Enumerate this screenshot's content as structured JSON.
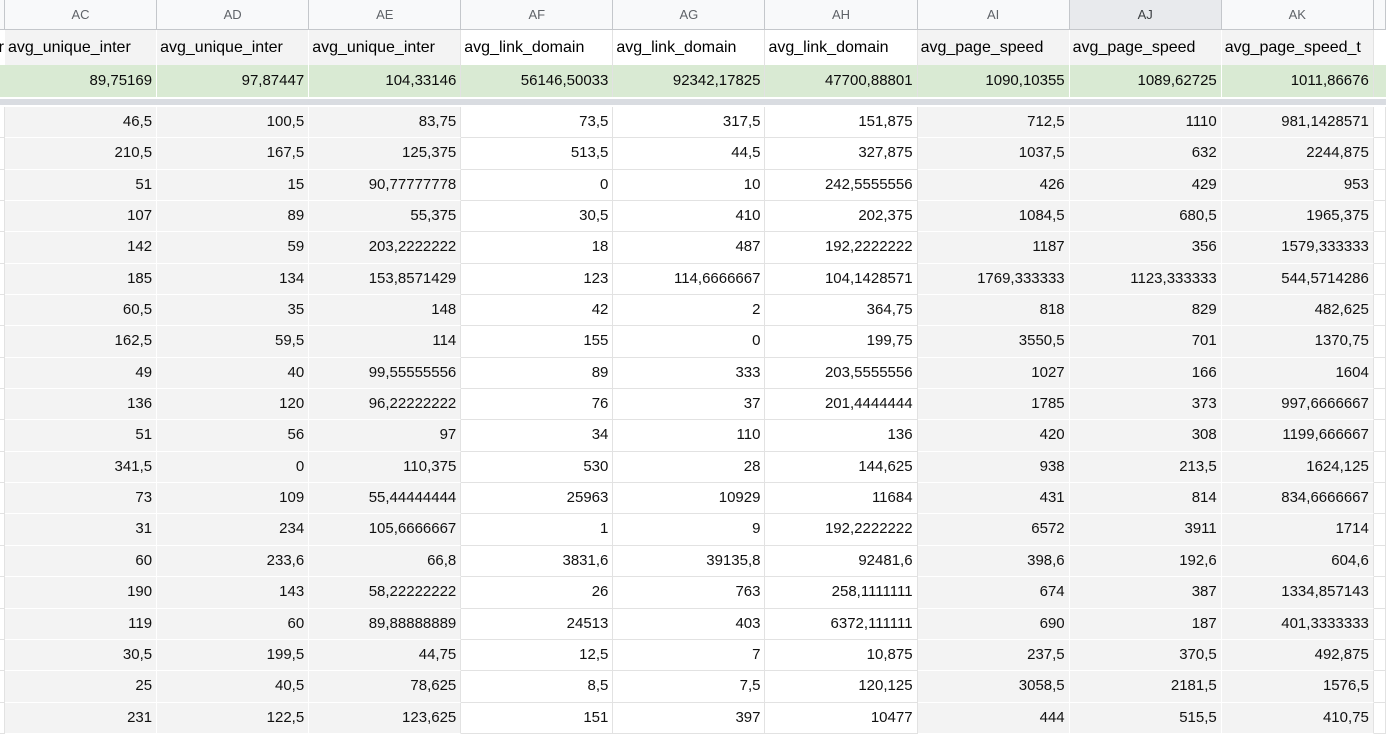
{
  "sheet": {
    "colors": {
      "header_bg": "#f8f9fa",
      "header_selected_bg": "#e8eaed",
      "header_border": "#c4c7cb",
      "header_text": "#5f6368",
      "band": "#d9dce1",
      "green": "#d9ead3",
      "gray_col": "#f3f3f3",
      "white_col": "#ffffff",
      "grid_light": "#e2e2e2",
      "name_text": "#000000"
    },
    "left_sliver_fragment": "r",
    "columns": [
      {
        "letter": "AC",
        "header": "avg_unique_inter",
        "shade": "gray",
        "selected": false
      },
      {
        "letter": "AD",
        "header": "avg_unique_inter",
        "shade": "gray",
        "selected": false
      },
      {
        "letter": "AE",
        "header": "avg_unique_inter",
        "shade": "gray",
        "selected": false
      },
      {
        "letter": "AF",
        "header": "avg_link_domain",
        "shade": "white",
        "selected": false
      },
      {
        "letter": "AG",
        "header": "avg_link_domain",
        "shade": "white",
        "selected": false
      },
      {
        "letter": "AH",
        "header": "avg_link_domain",
        "shade": "white",
        "selected": false
      },
      {
        "letter": "AI",
        "header": "avg_page_speed",
        "shade": "gray",
        "selected": false
      },
      {
        "letter": "AJ",
        "header": "avg_page_speed",
        "shade": "gray",
        "selected": true
      },
      {
        "letter": "AK",
        "header": "avg_page_speed_t",
        "shade": "gray",
        "selected": false
      }
    ],
    "summary_row": [
      "89,75169",
      "97,87447",
      "104,33146",
      "56146,50033",
      "92342,17825",
      "47700,88801",
      "1090,10355",
      "1089,62725",
      "1011,86676"
    ],
    "rows": [
      [
        "46,5",
        "100,5",
        "83,75",
        "73,5",
        "317,5",
        "151,875",
        "712,5",
        "1110",
        "981,1428571"
      ],
      [
        "210,5",
        "167,5",
        "125,375",
        "513,5",
        "44,5",
        "327,875",
        "1037,5",
        "632",
        "2244,875"
      ],
      [
        "51",
        "15",
        "90,77777778",
        "0",
        "10",
        "242,5555556",
        "426",
        "429",
        "953"
      ],
      [
        "107",
        "89",
        "55,375",
        "30,5",
        "410",
        "202,375",
        "1084,5",
        "680,5",
        "1965,375"
      ],
      [
        "142",
        "59",
        "203,2222222",
        "18",
        "487",
        "192,2222222",
        "1187",
        "356",
        "1579,333333"
      ],
      [
        "185",
        "134",
        "153,8571429",
        "123",
        "114,6666667",
        "104,1428571",
        "1769,333333",
        "1123,333333",
        "544,5714286"
      ],
      [
        "60,5",
        "35",
        "148",
        "42",
        "2",
        "364,75",
        "818",
        "829",
        "482,625"
      ],
      [
        "162,5",
        "59,5",
        "114",
        "155",
        "0",
        "199,75",
        "3550,5",
        "701",
        "1370,75"
      ],
      [
        "49",
        "40",
        "99,55555556",
        "89",
        "333",
        "203,5555556",
        "1027",
        "166",
        "1604"
      ],
      [
        "136",
        "120",
        "96,22222222",
        "76",
        "37",
        "201,4444444",
        "1785",
        "373",
        "997,6666667"
      ],
      [
        "51",
        "56",
        "97",
        "34",
        "110",
        "136",
        "420",
        "308",
        "1199,666667"
      ],
      [
        "341,5",
        "0",
        "110,375",
        "530",
        "28",
        "144,625",
        "938",
        "213,5",
        "1624,125"
      ],
      [
        "73",
        "109",
        "55,44444444",
        "25963",
        "10929",
        "11684",
        "431",
        "814",
        "834,6666667"
      ],
      [
        "31",
        "234",
        "105,6666667",
        "1",
        "9",
        "192,2222222",
        "6572",
        "3911",
        "1714"
      ],
      [
        "60",
        "233,6",
        "66,8",
        "3831,6",
        "39135,8",
        "92481,6",
        "398,6",
        "192,6",
        "604,6"
      ],
      [
        "190",
        "143",
        "58,22222222",
        "26",
        "763",
        "258,1111111",
        "674",
        "387",
        "1334,857143"
      ],
      [
        "119",
        "60",
        "89,88888889",
        "24513",
        "403",
        "6372,111111",
        "690",
        "187",
        "401,3333333"
      ],
      [
        "30,5",
        "199,5",
        "44,75",
        "12,5",
        "7",
        "10,875",
        "237,5",
        "370,5",
        "492,875"
      ],
      [
        "25",
        "40,5",
        "78,625",
        "8,5",
        "7,5",
        "120,125",
        "3058,5",
        "2181,5",
        "1576,5"
      ],
      [
        "231",
        "122,5",
        "123,625",
        "151",
        "397",
        "10477",
        "444",
        "515,5",
        "410,75"
      ]
    ]
  }
}
